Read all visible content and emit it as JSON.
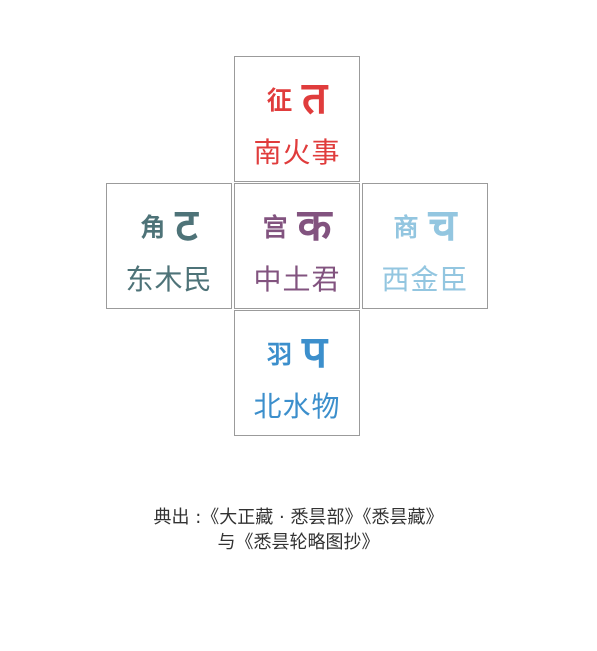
{
  "cells": {
    "north": {
      "tone": "征",
      "glyph": "त",
      "line": "南火事",
      "color": "#e03c3c"
    },
    "west": {
      "tone": "角",
      "glyph": "ट",
      "line": "东木民",
      "color": "#4e7378"
    },
    "center": {
      "tone": "宫",
      "glyph": "क",
      "line": "中土君",
      "color": "#82537f"
    },
    "east": {
      "tone": "商",
      "glyph": "च",
      "line": "西金臣",
      "color": "#93c6e0"
    },
    "south": {
      "tone": "羽",
      "glyph": "प",
      "line": "北水物",
      "color": "#3c8fcc"
    }
  },
  "source": {
    "line1": "典出 :《大正藏 · 悉昙部》《悉昙藏》",
    "line2": "与《悉昙轮略图抄》"
  }
}
